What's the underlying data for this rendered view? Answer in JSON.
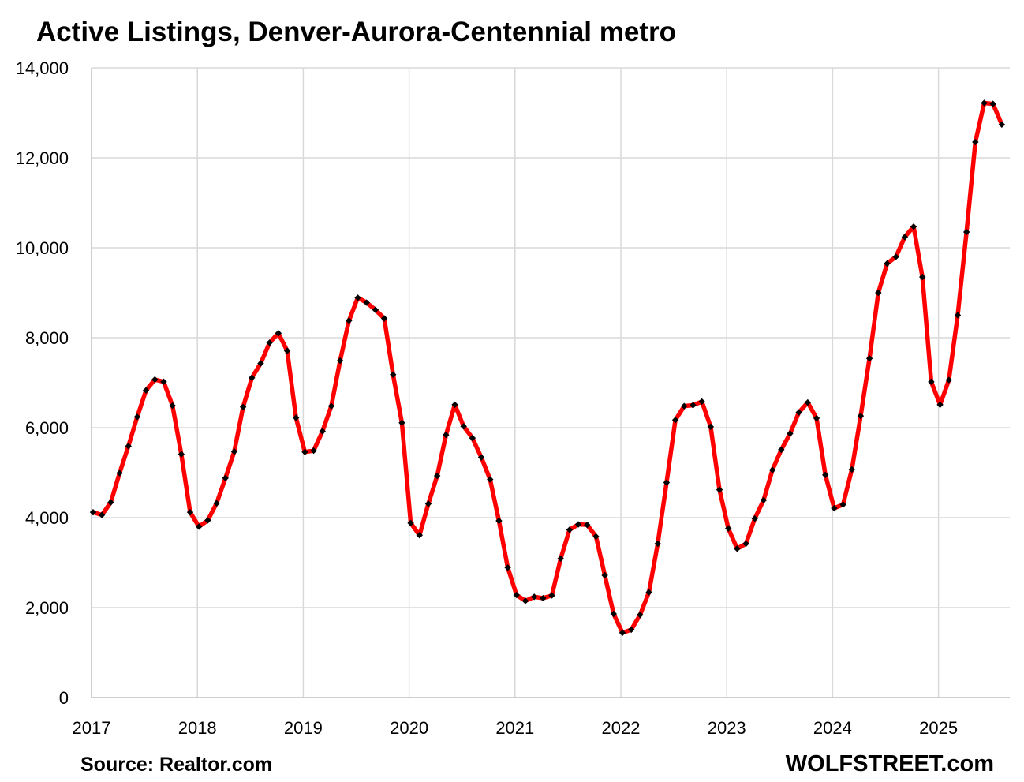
{
  "chart_data": {
    "type": "line",
    "title": "Active Listings, Denver-Aurora-Centennial metro",
    "xlabel": "",
    "ylabel": "",
    "ylim": [
      0,
      14000
    ],
    "yticks": [
      0,
      2000,
      4000,
      6000,
      8000,
      10000,
      12000,
      14000
    ],
    "ytick_labels": [
      "0",
      "2,000",
      "4,000",
      "6,000",
      "8,000",
      "10,000",
      "12,000",
      "14,000"
    ],
    "xticks": [
      "2017",
      "2018",
      "2019",
      "2020",
      "2021",
      "2022",
      "2023",
      "2024",
      "2025"
    ],
    "x_start": "2017-01",
    "x_end": "2025-08",
    "grid": true,
    "line_color": "#ff0000",
    "marker_color": "#000000",
    "series": [
      {
        "values": [
          4120,
          4060,
          4340,
          4990,
          5590,
          6240,
          6830,
          7070,
          7020,
          6490,
          5410,
          4120,
          3800,
          3940,
          4320,
          4880,
          5470,
          6460,
          7110,
          7430,
          7890,
          8100,
          7710,
          6220,
          5460,
          5490,
          5920,
          6480,
          7490,
          8380,
          8890,
          8780,
          8620,
          8430,
          7180,
          6110,
          3880,
          3610,
          4310,
          4930,
          5840,
          6510,
          6030,
          5770,
          5340,
          4850,
          3930,
          2890,
          2280,
          2150,
          2240,
          2210,
          2270,
          3090,
          3730,
          3850,
          3840,
          3580,
          2720,
          1860,
          1440,
          1510,
          1840,
          2340,
          3420,
          4780,
          6170,
          6480,
          6500,
          6580,
          6020,
          4620,
          3760,
          3310,
          3420,
          3980,
          4390,
          5060,
          5510,
          5870,
          6340,
          6560,
          6210,
          4950,
          4210,
          4290,
          5070,
          6260,
          7540,
          9000,
          9650,
          9800,
          10240,
          10470,
          9350,
          7020,
          6510,
          7060,
          8500,
          10350,
          12350,
          13220,
          13200,
          12740
        ]
      }
    ]
  },
  "footer": {
    "source": "Source: Realtor.com",
    "brand": "WOLFSTREET.com"
  }
}
